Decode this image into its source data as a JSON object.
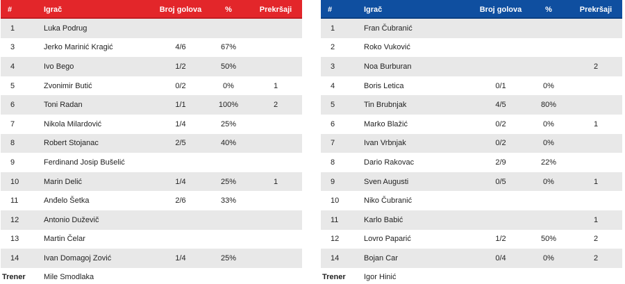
{
  "headers": {
    "num": "#",
    "name": "Igrač",
    "goals": "Broj golova",
    "pct": "%",
    "fouls": "Prekršaji"
  },
  "colors": {
    "home_header": "#e3262a",
    "away_header": "#0f4fa0",
    "stripe": "#e8e8e8"
  },
  "coach_label": "Trener",
  "home": {
    "rows": [
      {
        "num": "1",
        "name": "Luka Podrug",
        "goals": "",
        "pct": "",
        "fouls": ""
      },
      {
        "num": "3",
        "name": "Jerko Marinić Kragić",
        "goals": "4/6",
        "pct": "67%",
        "fouls": ""
      },
      {
        "num": "4",
        "name": "Ivo Bego",
        "goals": "1/2",
        "pct": "50%",
        "fouls": ""
      },
      {
        "num": "5",
        "name": "Zvonimir Butić",
        "goals": "0/2",
        "pct": "0%",
        "fouls": "1"
      },
      {
        "num": "6",
        "name": "Toni Radan",
        "goals": "1/1",
        "pct": "100%",
        "fouls": "2"
      },
      {
        "num": "7",
        "name": "Nikola Milardović",
        "goals": "1/4",
        "pct": "25%",
        "fouls": ""
      },
      {
        "num": "8",
        "name": "Robert Stojanac",
        "goals": "2/5",
        "pct": "40%",
        "fouls": ""
      },
      {
        "num": "9",
        "name": "Ferdinand Josip Bušelić",
        "goals": "",
        "pct": "",
        "fouls": ""
      },
      {
        "num": "10",
        "name": "Marin Delić",
        "goals": "1/4",
        "pct": "25%",
        "fouls": "1"
      },
      {
        "num": "11",
        "name": "Anđelo Šetka",
        "goals": "2/6",
        "pct": "33%",
        "fouls": ""
      },
      {
        "num": "12",
        "name": "Antonio Duževič",
        "goals": "",
        "pct": "",
        "fouls": ""
      },
      {
        "num": "13",
        "name": "Martin Čelar",
        "goals": "",
        "pct": "",
        "fouls": ""
      },
      {
        "num": "14",
        "name": "Ivan Domagoj Zović",
        "goals": "1/4",
        "pct": "25%",
        "fouls": ""
      }
    ],
    "coach": "Mile Smodlaka"
  },
  "away": {
    "rows": [
      {
        "num": "1",
        "name": "Fran Čubranić",
        "goals": "",
        "pct": "",
        "fouls": ""
      },
      {
        "num": "2",
        "name": "Roko Vuković",
        "goals": "",
        "pct": "",
        "fouls": ""
      },
      {
        "num": "3",
        "name": "Noa Burburan",
        "goals": "",
        "pct": "",
        "fouls": "2"
      },
      {
        "num": "4",
        "name": "Boris Letica",
        "goals": "0/1",
        "pct": "0%",
        "fouls": ""
      },
      {
        "num": "5",
        "name": "Tin Brubnjak",
        "goals": "4/5",
        "pct": "80%",
        "fouls": ""
      },
      {
        "num": "6",
        "name": "Marko Blažić",
        "goals": "0/2",
        "pct": "0%",
        "fouls": "1"
      },
      {
        "num": "7",
        "name": "Ivan Vrbnjak",
        "goals": "0/2",
        "pct": "0%",
        "fouls": ""
      },
      {
        "num": "8",
        "name": "Dario Rakovac",
        "goals": "2/9",
        "pct": "22%",
        "fouls": ""
      },
      {
        "num": "9",
        "name": "Sven Augusti",
        "goals": "0/5",
        "pct": "0%",
        "fouls": "1"
      },
      {
        "num": "10",
        "name": "Niko Čubranić",
        "goals": "",
        "pct": "",
        "fouls": ""
      },
      {
        "num": "11",
        "name": "Karlo Babić",
        "goals": "",
        "pct": "",
        "fouls": "1"
      },
      {
        "num": "12",
        "name": "Lovro Paparić",
        "goals": "1/2",
        "pct": "50%",
        "fouls": "2"
      },
      {
        "num": "14",
        "name": "Bojan Car",
        "goals": "0/4",
        "pct": "0%",
        "fouls": "2"
      }
    ],
    "coach": "Igor Hinić"
  }
}
